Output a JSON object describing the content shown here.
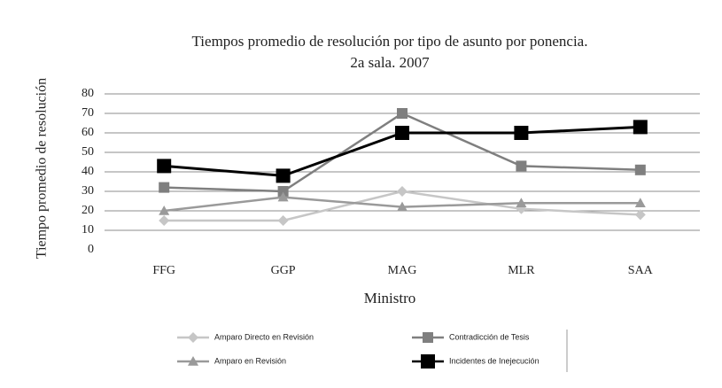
{
  "chart_data": {
    "type": "line",
    "title": "Tiempos promedio de resolución por tipo de asunto por ponencia.",
    "subtitle": "2a sala. 2007",
    "x_label": "Ministro",
    "y_label": "Tiempo promedio de resolución",
    "categories": [
      "FFG",
      "GGP",
      "MAG",
      "MLR",
      "SAA"
    ],
    "ylim": [
      0,
      80
    ],
    "yticks": [
      0,
      10,
      20,
      30,
      40,
      50,
      60,
      70,
      80
    ],
    "grid": true,
    "series": [
      {
        "name": "Amparo Directo en Revisión",
        "color": "#c6c6c6",
        "marker": "diamond",
        "values": [
          15,
          15,
          30,
          21,
          18
        ]
      },
      {
        "name": "Contradicción de Tesis",
        "color": "#7f7f7f",
        "marker": "square",
        "values": [
          32,
          30,
          70,
          43,
          41
        ]
      },
      {
        "name": "Amparo en Revisión",
        "color": "#9a9a9a",
        "marker": "triangle",
        "values": [
          20,
          27,
          22,
          24,
          24
        ]
      },
      {
        "name": "Incidentes de Inejecución",
        "color": "#000000",
        "marker": "square",
        "values": [
          43,
          38,
          60,
          60,
          63
        ]
      }
    ]
  }
}
